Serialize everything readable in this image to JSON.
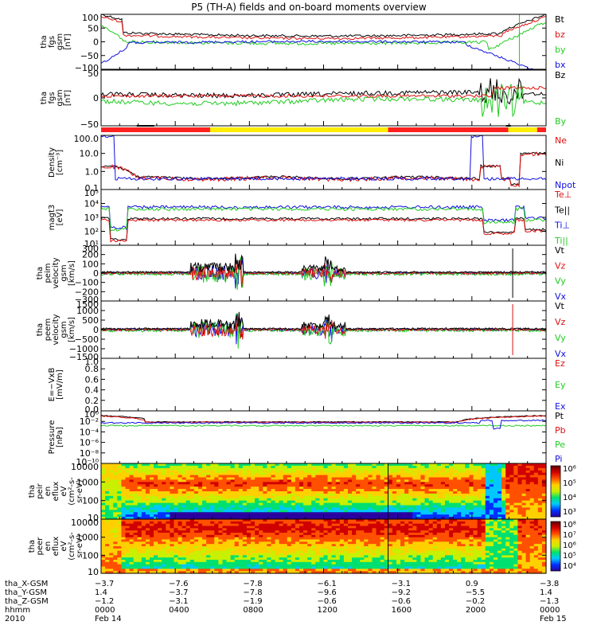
{
  "title": "P5 (TH-A) fields and on-board moments overview",
  "colors": {
    "black": "#000000",
    "red": "#dd1010",
    "green": "#22cc22",
    "blue": "#1010dd",
    "yellow": "#ffee00",
    "bar_red": "#ff2020"
  },
  "panels": [
    {
      "id": "fgs-gsm",
      "ylabel": [
        "tha",
        "fgs",
        "gsm",
        "[nT]"
      ],
      "ticks": [
        "100",
        "50",
        "0",
        "−50",
        "−100"
      ],
      "legend": [
        {
          "text": "Bt",
          "color": "#000000"
        },
        {
          "text": "bz",
          "color": "#dd1010"
        },
        {
          "text": "by",
          "color": "#22cc22"
        },
        {
          "text": "bx",
          "color": "#1010dd"
        }
      ]
    },
    {
      "id": "fgs-dsl",
      "ylabel": [
        "tha",
        "fgs",
        "gsm",
        "[nT]"
      ],
      "ticks": [
        "50",
        "0",
        "−50"
      ],
      "legend": [
        {
          "text": "Bz",
          "color": "#000000"
        },
        {
          "text": "By",
          "color": "#22cc22"
        }
      ]
    },
    {
      "id": "density",
      "ylabel": [
        "Density",
        "[cm⁻³]"
      ],
      "ticks": [
        "100.0",
        "10.0",
        "1.0",
        "0.1"
      ],
      "legend": [
        {
          "text": "Ne",
          "color": "#dd1010"
        },
        {
          "text": "Ni",
          "color": "#000000"
        },
        {
          "text": "Npot",
          "color": "#1010dd"
        }
      ]
    },
    {
      "id": "temperature",
      "ylabel": [
        "magt3",
        "[eV]"
      ],
      "ticks": [
        "10⁵",
        "10⁴",
        "10³",
        "10²",
        "10¹"
      ],
      "legend": [
        {
          "text": "Te⊥",
          "color": "#dd1010"
        },
        {
          "text": "Te||",
          "color": "#000000"
        },
        {
          "text": "Ti⊥",
          "color": "#1010dd"
        },
        {
          "text": "Ti||",
          "color": "#22cc22"
        }
      ]
    },
    {
      "id": "peim-velocity",
      "ylabel": [
        "tha",
        "peim",
        "velocity",
        "gsm",
        "[km/s]"
      ],
      "ticks": [
        "300",
        "200",
        "100",
        "0",
        "−100",
        "−200",
        "−300"
      ],
      "legend": [
        {
          "text": "Vt",
          "color": "#000000"
        },
        {
          "text": "Vz",
          "color": "#dd1010"
        },
        {
          "text": "Vy",
          "color": "#22cc22"
        },
        {
          "text": "Vx",
          "color": "#1010dd"
        }
      ]
    },
    {
      "id": "peem-velocity",
      "ylabel": [
        "tha",
        "peem",
        "velocity",
        "gsm",
        "[km/s]"
      ],
      "ticks": [
        "1500",
        "1000",
        "500",
        "0",
        "−500",
        "−1000",
        "−1500"
      ],
      "legend": [
        {
          "text": "Vt",
          "color": "#000000"
        },
        {
          "text": "Vz",
          "color": "#dd1010"
        },
        {
          "text": "Vy",
          "color": "#22cc22"
        },
        {
          "text": "Vx",
          "color": "#1010dd"
        }
      ]
    },
    {
      "id": "efield",
      "ylabel": [
        "E=−VxB",
        "[mV/m]"
      ],
      "ticks": [
        "1.0",
        "0.8",
        "0.6",
        "0.4",
        "0.2",
        "0.0"
      ],
      "legend": [
        {
          "text": "Ez",
          "color": "#dd1010"
        },
        {
          "text": "Ey",
          "color": "#22cc22"
        },
        {
          "text": "Ex",
          "color": "#1010dd"
        }
      ]
    },
    {
      "id": "pressure",
      "ylabel": [
        "Pressure",
        "[nPa]"
      ],
      "ticks": [
        "10⁰",
        "10⁻²",
        "10⁻⁴",
        "10⁻⁶",
        "10⁻⁸",
        "10⁻¹⁰"
      ],
      "legend": [
        {
          "text": "Pt",
          "color": "#000000"
        },
        {
          "text": "Pb",
          "color": "#dd1010"
        },
        {
          "text": "Pe",
          "color": "#22cc22"
        },
        {
          "text": "Pi",
          "color": "#1010dd"
        }
      ]
    },
    {
      "id": "peir-spectrogram",
      "ylabel": [
        "tha",
        "peir",
        "en",
        "eflux",
        "eV",
        "(cm²-s-",
        "sr-eV)"
      ],
      "ticks": [
        "10000",
        "1000",
        "100",
        "10"
      ],
      "colorbar": [
        "10⁶",
        "10⁵",
        "10⁴",
        "10³"
      ]
    },
    {
      "id": "peer-spectrogram",
      "ylabel": [
        "tha",
        "peer",
        "en",
        "eflux",
        "eV",
        "(cm²-s-",
        "sr-eV)"
      ],
      "ticks": [
        "10000",
        "1000",
        "100",
        "10"
      ],
      "colorbar": [
        "10⁸",
        "10⁷",
        "10⁶",
        "10⁵",
        "10⁴"
      ]
    }
  ],
  "orbit_table": {
    "rows": [
      {
        "label": "tha_X-GSM",
        "values": [
          "−3.7",
          "−7.6",
          "−7.8",
          "−6.1",
          "−3.1",
          "0.9",
          "−3.8"
        ]
      },
      {
        "label": "tha_Y-GSM",
        "values": [
          "1.4",
          "−3.7",
          "−7.8",
          "−9.6",
          "−9.2",
          "−5.5",
          "1.4"
        ]
      },
      {
        "label": "tha_Z-GSM",
        "values": [
          "−1.2",
          "−3.1",
          "−1.9",
          "−0.6",
          "−0.6",
          "−0.2",
          "−1.3"
        ]
      },
      {
        "label": "hhmm",
        "values": [
          "0000",
          "0400",
          "0800",
          "1200",
          "1600",
          "2000",
          "0000"
        ]
      }
    ],
    "year": "2010",
    "date_start": "Feb 14",
    "date_end": "Feb 15"
  },
  "chart_data": {
    "type": "line",
    "title": "P5 (TH-A) fields and on-board moments overview",
    "x": [
      "0000",
      "0400",
      "0800",
      "1200",
      "1600",
      "2000",
      "0000"
    ],
    "xlabel": "hhmm",
    "series": [
      {
        "name": "Bt",
        "panel": "fgs-gsm",
        "values": [
          80,
          40,
          25,
          20,
          25,
          70,
          100
        ]
      },
      {
        "name": "bz",
        "panel": "fgs-gsm",
        "values": [
          70,
          35,
          20,
          20,
          25,
          60,
          100
        ]
      },
      {
        "name": "by",
        "panel": "fgs-gsm",
        "values": [
          10,
          -10,
          -15,
          -10,
          -5,
          -20,
          100
        ]
      },
      {
        "name": "bx",
        "panel": "fgs-gsm",
        "values": [
          -60,
          -20,
          -5,
          -5,
          -10,
          -40,
          -100
        ]
      },
      {
        "name": "Ni",
        "panel": "density",
        "values": [
          2.0,
          0.5,
          0.5,
          0.5,
          0.5,
          1.5,
          8
        ]
      },
      {
        "name": "Ne",
        "panel": "density",
        "values": [
          1.5,
          0.5,
          0.5,
          0.6,
          0.6,
          1.2,
          0.9
        ]
      },
      {
        "name": "Pt",
        "panel": "pressure",
        "values": [
          0.5,
          0.05,
          0.03,
          0.03,
          0.05,
          0.3,
          1
        ]
      }
    ],
    "ylim_fgs": [
      -100,
      100
    ],
    "ylim_density": [
      0.1,
      100
    ],
    "ylim_pressure": [
      1e-10,
      1
    ]
  }
}
